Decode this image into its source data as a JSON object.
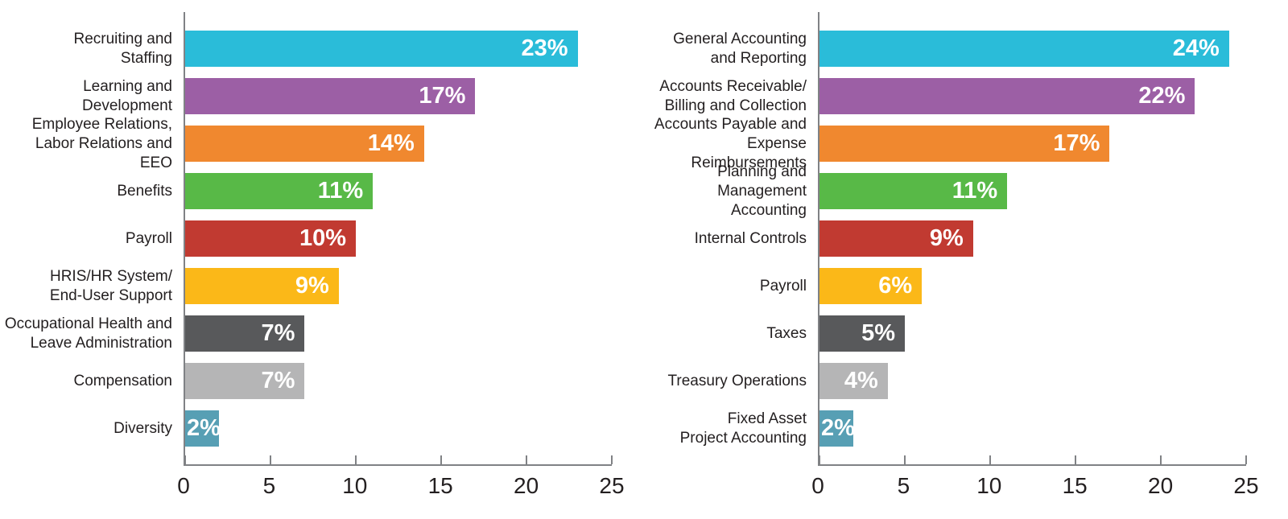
{
  "colors": {
    "axis": "#808285",
    "text": "#231F20",
    "value_label": "#FFFFFF"
  },
  "chart_data": [
    {
      "name": "hr-functions",
      "type": "bar",
      "orientation": "horizontal",
      "title": "",
      "xlabel": "",
      "ylabel": "",
      "xlim": [
        0,
        25
      ],
      "x_ticks": [
        0,
        5,
        10,
        15,
        20,
        25
      ],
      "grid": false,
      "legend": false,
      "categories": [
        "Recruiting and\nStaffing",
        "Learning and\nDevelopment",
        "Employee Relations,\nLabor Relations and EEO",
        "Benefits",
        "Payroll",
        "HRIS/HR System/\nEnd-User Support",
        "Occupational Health and\nLeave Administration",
        "Compensation",
        "Diversity"
      ],
      "values": [
        23,
        17,
        14,
        11,
        10,
        9,
        7,
        7,
        2
      ],
      "value_labels": [
        "23%",
        "17%",
        "14%",
        "11%",
        "10%",
        "9%",
        "7%",
        "7%",
        "2%"
      ],
      "bar_colors": [
        "#2ABCD9",
        "#9C5FA5",
        "#F0882F",
        "#58B947",
        "#C13A31",
        "#FBB818",
        "#58595B",
        "#B5B5B6",
        "#579FB4"
      ]
    },
    {
      "name": "accounting-functions",
      "type": "bar",
      "orientation": "horizontal",
      "title": "",
      "xlabel": "",
      "ylabel": "",
      "xlim": [
        0,
        25
      ],
      "x_ticks": [
        0,
        5,
        10,
        15,
        20,
        25
      ],
      "grid": false,
      "legend": false,
      "categories": [
        "General Accounting\nand Reporting",
        "Accounts Receivable/\nBilling and Collection",
        "Accounts Payable and\nExpense Reimbursements",
        "Planning and\nManagement Accounting",
        "Internal Controls",
        "Payroll",
        "Taxes",
        "Treasury Operations",
        "Fixed Asset\nProject Accounting"
      ],
      "values": [
        24,
        22,
        17,
        11,
        9,
        6,
        5,
        4,
        2
      ],
      "value_labels": [
        "24%",
        "22%",
        "17%",
        "11%",
        "9%",
        "6%",
        "5%",
        "4%",
        "2%"
      ],
      "bar_colors": [
        "#2ABCD9",
        "#9C5FA5",
        "#F0882F",
        "#58B947",
        "#C13A31",
        "#FBB818",
        "#58595B",
        "#B5B5B6",
        "#579FB4"
      ]
    }
  ]
}
